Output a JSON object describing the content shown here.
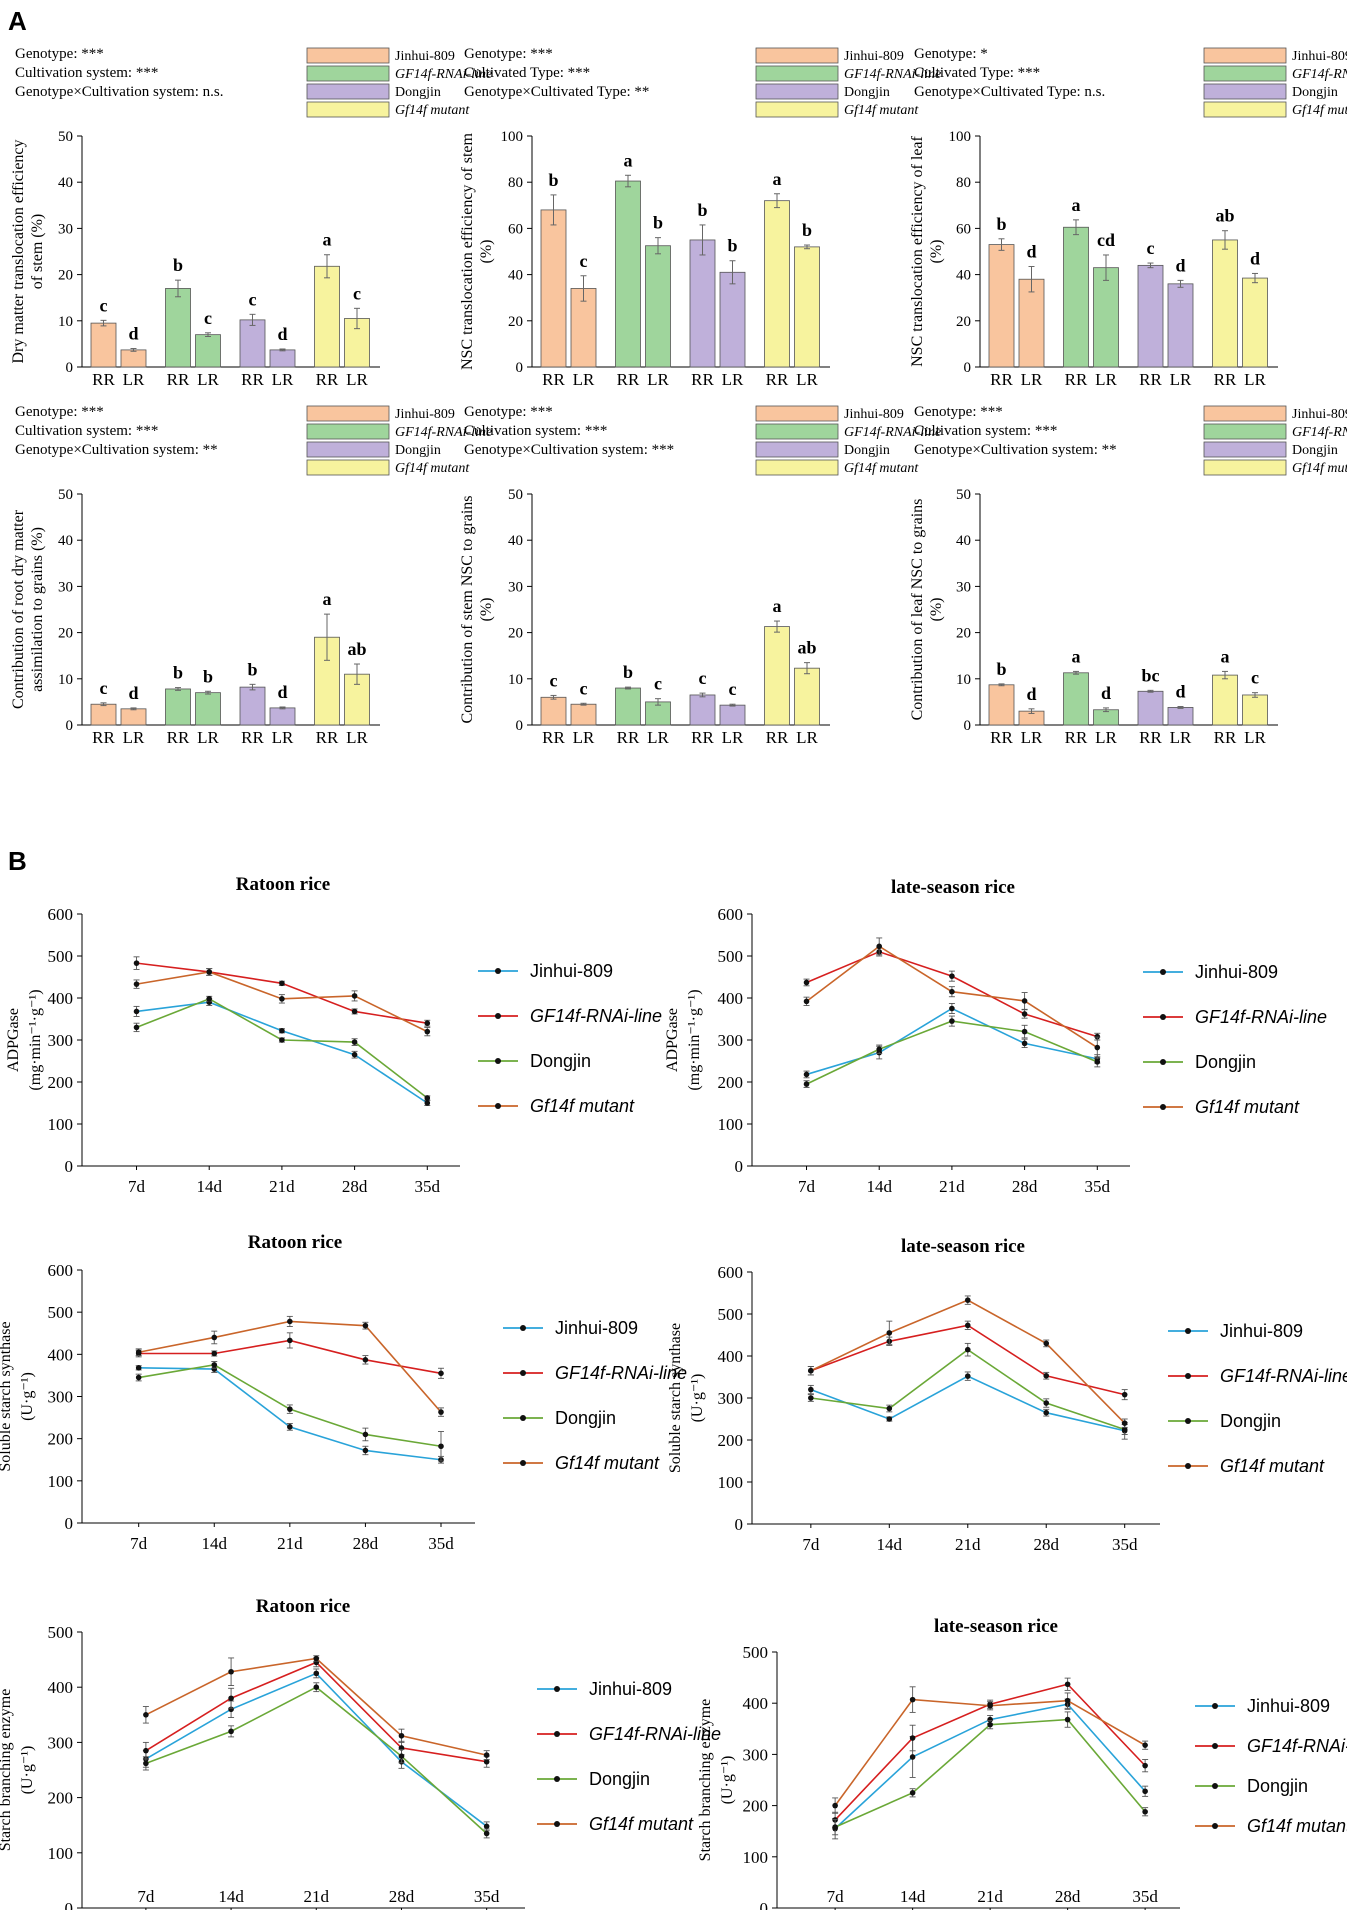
{
  "panel_labels": [
    "A",
    "B"
  ],
  "colors": {
    "Jinhui-809": "#f9c59e",
    "GF14f-RNAi-line": "#9fd59c",
    "Dongjin": "#bfb0da",
    "Gf14f mutant": "#f7f39e",
    "line_Jinhui-809": "#29a3d9",
    "line_GF14f-RNAi-line": "#d61f1f",
    "line_Dongjin": "#6aa837",
    "line_Gf14f mutant": "#c9652a"
  },
  "legend": {
    "bar_series": [
      {
        "name": "Jinhui-809",
        "italic": false
      },
      {
        "name": "GF14f-RNAi-line",
        "italic": true
      },
      {
        "name": "Dongjin",
        "italic": false
      },
      {
        "name": "Gf14f mutant",
        "italic": true
      }
    ]
  },
  "chart_data": [
    {
      "type": "bar",
      "id": "a1",
      "stats": [
        "Genotype: ***",
        "Cultivation system: ***",
        "Genotype×Cultivation system: n.s."
      ],
      "ylabel": [
        "Dry matter translocation efficiency",
        "of stem (%)"
      ],
      "ylim": [
        0,
        50
      ],
      "yticks": [
        0,
        10,
        20,
        30,
        40,
        50
      ],
      "categories": [
        "RR",
        "LR"
      ],
      "series": [
        {
          "name": "Jinhui-809",
          "values": [
            9.5,
            3.7
          ],
          "errors": [
            0.6,
            0.3
          ],
          "letters": [
            "c",
            "d"
          ]
        },
        {
          "name": "GF14f-RNAi-line",
          "values": [
            17.0,
            7.0
          ],
          "errors": [
            1.8,
            0.4
          ],
          "letters": [
            "b",
            "c"
          ]
        },
        {
          "name": "Dongjin",
          "values": [
            10.2,
            3.7
          ],
          "errors": [
            1.2,
            0.2
          ],
          "letters": [
            "c",
            "d"
          ]
        },
        {
          "name": "Gf14f mutant",
          "values": [
            21.8,
            10.5
          ],
          "errors": [
            2.5,
            2.2
          ],
          "letters": [
            "a",
            "c"
          ]
        }
      ]
    },
    {
      "type": "bar",
      "id": "a2",
      "stats": [
        "Genotype: ***",
        "Cultivated Type: ***",
        "Genotype×Cultivated Type: **"
      ],
      "ylabel": [
        "NSC translocation efficiency of stem",
        "(%)"
      ],
      "ylim": [
        0,
        100
      ],
      "yticks": [
        0,
        20,
        40,
        60,
        80,
        100
      ],
      "categories": [
        "RR",
        "LR"
      ],
      "series": [
        {
          "name": "Jinhui-809",
          "values": [
            68,
            34
          ],
          "errors": [
            6.5,
            5.5
          ],
          "letters": [
            "b",
            "c"
          ]
        },
        {
          "name": "GF14f-RNAi-line",
          "values": [
            80.5,
            52.5
          ],
          "errors": [
            2.5,
            3.5
          ],
          "letters": [
            "a",
            "b"
          ]
        },
        {
          "name": "Dongjin",
          "values": [
            55,
            41
          ],
          "errors": [
            6.5,
            5
          ],
          "letters": [
            "b",
            "b"
          ]
        },
        {
          "name": "Gf14f mutant",
          "values": [
            72,
            52
          ],
          "errors": [
            3,
            0.8
          ],
          "letters": [
            "a",
            "b"
          ]
        }
      ]
    },
    {
      "type": "bar",
      "id": "a3",
      "stats": [
        "Genotype: *",
        "Cultivated Type: ***",
        "Genotype×Cultivated Type: n.s."
      ],
      "ylabel": [
        "NSC translocation efficiency of leaf",
        "(%)"
      ],
      "ylim": [
        0,
        100
      ],
      "yticks": [
        0,
        20,
        40,
        60,
        80,
        100
      ],
      "categories": [
        "RR",
        "LR"
      ],
      "series": [
        {
          "name": "Jinhui-809",
          "values": [
            53,
            38
          ],
          "errors": [
            2.5,
            5.5
          ],
          "letters": [
            "b",
            "d"
          ]
        },
        {
          "name": "GF14f-RNAi-line",
          "values": [
            60.5,
            43
          ],
          "errors": [
            3.2,
            5.5
          ],
          "letters": [
            "a",
            "cd"
          ]
        },
        {
          "name": "Dongjin",
          "values": [
            44,
            36
          ],
          "errors": [
            1,
            1.5
          ],
          "letters": [
            "c",
            "d"
          ]
        },
        {
          "name": "Gf14f mutant",
          "values": [
            55,
            38.5
          ],
          "errors": [
            4,
            2
          ],
          "letters": [
            "ab",
            "d"
          ]
        }
      ]
    },
    {
      "type": "bar",
      "id": "a4",
      "stats": [
        "Genotype: ***",
        "Cultivation system: ***",
        "Genotype×Cultivation system: **"
      ],
      "ylabel": [
        "Contribution of root dry matter",
        "assimilation to grains (%)"
      ],
      "ylim": [
        0,
        50
      ],
      "yticks": [
        0,
        10,
        20,
        30,
        40,
        50
      ],
      "categories": [
        "RR",
        "LR"
      ],
      "series": [
        {
          "name": "Jinhui-809",
          "values": [
            4.5,
            3.5
          ],
          "errors": [
            0.3,
            0.2
          ],
          "letters": [
            "c",
            "d"
          ]
        },
        {
          "name": "GF14f-RNAi-line",
          "values": [
            7.8,
            7.0
          ],
          "errors": [
            0.3,
            0.3
          ],
          "letters": [
            "b",
            "b"
          ]
        },
        {
          "name": "Dongjin",
          "values": [
            8.2,
            3.7
          ],
          "errors": [
            0.6,
            0.2
          ],
          "letters": [
            "b",
            "d"
          ]
        },
        {
          "name": "Gf14f mutant",
          "values": [
            19,
            11
          ],
          "errors": [
            5,
            2.2
          ],
          "letters": [
            "a",
            "ab"
          ]
        }
      ]
    },
    {
      "type": "bar",
      "id": "a5",
      "stats": [
        "Genotype: ***",
        "Cultivation system: ***",
        "Genotype×Cultivation system: ***"
      ],
      "ylabel": [
        "Contribution of stem NSC to grains",
        "(%)"
      ],
      "ylim": [
        0,
        50
      ],
      "yticks": [
        0,
        10,
        20,
        30,
        40,
        50
      ],
      "categories": [
        "RR",
        "LR"
      ],
      "series": [
        {
          "name": "Jinhui-809",
          "values": [
            6,
            4.5
          ],
          "errors": [
            0.4,
            0.2
          ],
          "letters": [
            "c",
            "c"
          ]
        },
        {
          "name": "GF14f-RNAi-line",
          "values": [
            8,
            5
          ],
          "errors": [
            0.2,
            0.7
          ],
          "letters": [
            "b",
            "c"
          ]
        },
        {
          "name": "Dongjin",
          "values": [
            6.5,
            4.3
          ],
          "errors": [
            0.4,
            0.2
          ],
          "letters": [
            "c",
            "c"
          ]
        },
        {
          "name": "Gf14f mutant",
          "values": [
            21.3,
            12.3
          ],
          "errors": [
            1.2,
            1.2
          ],
          "letters": [
            "a",
            "ab"
          ]
        }
      ]
    },
    {
      "type": "bar",
      "id": "a6",
      "stats": [
        "Genotype: ***",
        "Cultivation system: ***",
        "Genotype×Cultivation system: **"
      ],
      "ylabel": [
        "Contribution of leaf NSC to grains",
        "(%)"
      ],
      "ylim": [
        0,
        50
      ],
      "yticks": [
        0,
        10,
        20,
        30,
        40,
        50
      ],
      "categories": [
        "RR",
        "LR"
      ],
      "series": [
        {
          "name": "Jinhui-809",
          "values": [
            8.7,
            3.0
          ],
          "errors": [
            0.2,
            0.5
          ],
          "letters": [
            "b",
            "d"
          ]
        },
        {
          "name": "GF14f-RNAi-line",
          "values": [
            11.3,
            3.3
          ],
          "errors": [
            0.3,
            0.4
          ],
          "letters": [
            "a",
            "d"
          ]
        },
        {
          "name": "Dongjin",
          "values": [
            7.3,
            3.8
          ],
          "errors": [
            0.2,
            0.2
          ],
          "letters": [
            "bc",
            "d"
          ]
        },
        {
          "name": "Gf14f mutant",
          "values": [
            10.8,
            6.5
          ],
          "errors": [
            0.8,
            0.5
          ],
          "letters": [
            "a",
            "c"
          ]
        }
      ]
    },
    {
      "type": "line",
      "id": "b1",
      "title": "Ratoon rice",
      "ylabel": [
        "ADPGase",
        "(mg·min⁻¹·g⁻¹)"
      ],
      "ylim": [
        0,
        600
      ],
      "yticks": [
        0,
        100,
        200,
        300,
        400,
        500,
        600
      ],
      "x": [
        "7d",
        "14d",
        "21d",
        "28d",
        "35d"
      ],
      "series": [
        {
          "name": "Jinhui-809",
          "values": [
            368,
            390,
            322,
            265,
            150
          ],
          "errors": [
            12,
            8,
            5,
            8,
            6
          ]
        },
        {
          "name": "GF14f-RNAi-line",
          "values": [
            483,
            462,
            435,
            368,
            340
          ],
          "errors": [
            15,
            8,
            5,
            6,
            7
          ]
        },
        {
          "name": "Dongjin",
          "values": [
            330,
            398,
            300,
            295,
            162
          ],
          "errors": [
            10,
            6,
            5,
            8,
            5
          ]
        },
        {
          "name": "Gf14f mutant",
          "values": [
            433,
            462,
            398,
            405,
            320
          ],
          "errors": [
            10,
            8,
            10,
            12,
            10
          ]
        }
      ]
    },
    {
      "type": "line",
      "id": "b2",
      "title": "late-season rice",
      "ylabel": [
        "ADPGase",
        "(mg·min⁻¹·g⁻¹)"
      ],
      "ylim": [
        0,
        600
      ],
      "yticks": [
        0,
        100,
        200,
        300,
        400,
        500,
        600
      ],
      "x": [
        "7d",
        "14d",
        "21d",
        "28d",
        "35d"
      ],
      "series": [
        {
          "name": "Jinhui-809",
          "values": [
            218,
            270,
            375,
            292,
            255
          ],
          "errors": [
            8,
            15,
            12,
            10,
            10
          ]
        },
        {
          "name": "GF14f-RNAi-line",
          "values": [
            437,
            510,
            452,
            362,
            308
          ],
          "errors": [
            8,
            10,
            12,
            10,
            8
          ]
        },
        {
          "name": "Dongjin",
          "values": [
            195,
            278,
            345,
            320,
            248
          ],
          "errors": [
            8,
            10,
            12,
            15,
            12
          ]
        },
        {
          "name": "Gf14f mutant",
          "values": [
            392,
            523,
            415,
            393,
            282
          ],
          "errors": [
            10,
            20,
            12,
            20,
            25
          ]
        }
      ]
    },
    {
      "type": "line",
      "id": "b3",
      "title": "Ratoon rice",
      "ylabel": [
        "Soluble starch synthase",
        "(U·g⁻¹)"
      ],
      "ylim": [
        0,
        600
      ],
      "yticks": [
        0,
        100,
        200,
        300,
        400,
        500,
        600
      ],
      "x": [
        "7d",
        "14d",
        "21d",
        "28d",
        "35d"
      ],
      "series": [
        {
          "name": "Jinhui-809",
          "values": [
            368,
            365,
            228,
            172,
            150
          ],
          "errors": [
            5,
            8,
            8,
            10,
            8
          ]
        },
        {
          "name": "GF14f-RNAi-line",
          "values": [
            402,
            402,
            433,
            387,
            355
          ],
          "errors": [
            8,
            6,
            18,
            10,
            12
          ]
        },
        {
          "name": "Dongjin",
          "values": [
            345,
            375,
            270,
            210,
            182
          ],
          "errors": [
            8,
            8,
            10,
            15,
            35
          ]
        },
        {
          "name": "Gf14f mutant",
          "values": [
            405,
            440,
            478,
            468,
            263
          ],
          "errors": [
            8,
            15,
            12,
            8,
            10
          ]
        }
      ]
    },
    {
      "type": "line",
      "id": "b4",
      "title": "late-season rice",
      "ylabel": [
        "Soluble starch synthase",
        "(U·g⁻¹)"
      ],
      "ylim": [
        0,
        600
      ],
      "yticks": [
        0,
        100,
        200,
        300,
        400,
        500,
        600
      ],
      "x": [
        "7d",
        "14d",
        "21d",
        "28d",
        "35d"
      ],
      "series": [
        {
          "name": "Jinhui-809",
          "values": [
            320,
            250,
            352,
            265,
            222
          ],
          "errors": [
            10,
            5,
            10,
            8,
            20
          ]
        },
        {
          "name": "GF14f-RNAi-line",
          "values": [
            365,
            435,
            473,
            353,
            308
          ],
          "errors": [
            10,
            10,
            10,
            8,
            12
          ]
        },
        {
          "name": "Dongjin",
          "values": [
            300,
            275,
            415,
            288,
            225
          ],
          "errors": [
            8,
            8,
            15,
            10,
            12
          ]
        },
        {
          "name": "Gf14f mutant",
          "values": [
            365,
            455,
            533,
            430,
            240
          ],
          "errors": [
            10,
            28,
            10,
            8,
            10
          ]
        }
      ]
    },
    {
      "type": "line",
      "id": "b5",
      "title": "Ratoon rice",
      "ylabel": [
        "Starch branching enzyme",
        "(U·g⁻¹)"
      ],
      "ylim": [
        0,
        500
      ],
      "yticks": [
        0,
        100,
        200,
        300,
        400,
        500
      ],
      "x": [
        "7d",
        "14d",
        "21d",
        "28d",
        "35d"
      ],
      "series": [
        {
          "name": "Jinhui-809",
          "values": [
            270,
            360,
            425,
            265,
            148
          ],
          "errors": [
            15,
            15,
            8,
            12,
            8
          ]
        },
        {
          "name": "GF14f-RNAi-line",
          "values": [
            285,
            380,
            445,
            290,
            265
          ],
          "errors": [
            15,
            18,
            8,
            12,
            10
          ]
        },
        {
          "name": "Dongjin",
          "values": [
            262,
            320,
            400,
            275,
            135
          ],
          "errors": [
            12,
            10,
            8,
            12,
            8
          ]
        },
        {
          "name": "Gf14f mutant",
          "values": [
            350,
            428,
            452,
            312,
            277
          ],
          "errors": [
            15,
            25,
            5,
            12,
            8
          ]
        }
      ]
    },
    {
      "type": "line",
      "id": "b6",
      "title": "late-season rice",
      "ylabel": [
        "Starch branching enzyme",
        "(U·g⁻¹)"
      ],
      "ylim": [
        0,
        500
      ],
      "yticks": [
        0,
        100,
        200,
        300,
        400,
        500
      ],
      "x": [
        "7d",
        "14d",
        "21d",
        "28d",
        "35d"
      ],
      "series": [
        {
          "name": "Jinhui-809",
          "values": [
            155,
            295,
            368,
            398,
            228
          ],
          "errors": [
            20,
            40,
            8,
            10,
            10
          ]
        },
        {
          "name": "GF14f-RNAi-line",
          "values": [
            172,
            332,
            398,
            437,
            278
          ],
          "errors": [
            15,
            25,
            8,
            12,
            12
          ]
        },
        {
          "name": "Dongjin",
          "values": [
            158,
            225,
            358,
            368,
            188
          ],
          "errors": [
            15,
            8,
            8,
            15,
            8
          ]
        },
        {
          "name": "Gf14f mutant",
          "values": [
            200,
            407,
            395,
            405,
            318
          ],
          "errors": [
            15,
            25,
            8,
            15,
            8
          ]
        }
      ]
    }
  ]
}
